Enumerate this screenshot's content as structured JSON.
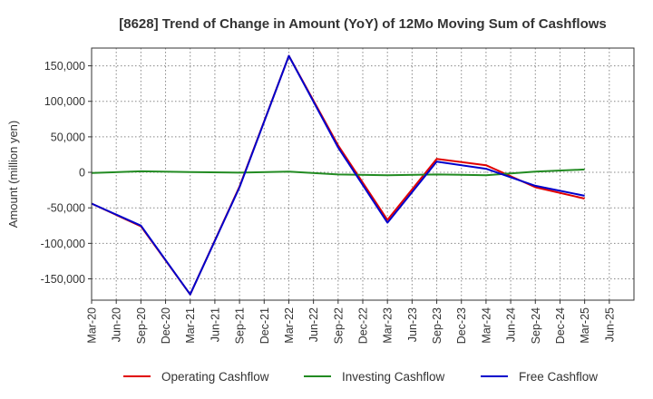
{
  "chart_data": {
    "type": "line",
    "title": "[8628]  Trend of Change in Amount (YoY) of 12Mo Moving Sum of Cashflows",
    "xlabel": "",
    "ylabel": "Amount (million yen)",
    "ylim": [
      -180000,
      175000
    ],
    "yticks": [
      150000,
      100000,
      50000,
      0,
      -50000,
      -100000,
      -150000
    ],
    "ytick_labels": [
      "150,000",
      "100,000",
      "50,000",
      "0",
      "-50,000",
      "-100,000",
      "-150,000"
    ],
    "categories": [
      "Mar-20",
      "Jun-20",
      "Sep-20",
      "Dec-20",
      "Mar-21",
      "Jun-21",
      "Sep-21",
      "Dec-21",
      "Mar-22",
      "Jun-22",
      "Sep-22",
      "Dec-22",
      "Mar-23",
      "Jun-23",
      "Sep-23",
      "Dec-23",
      "Mar-24",
      "Jun-24",
      "Sep-24",
      "Dec-24",
      "Mar-25",
      "Jun-25"
    ],
    "grid": true,
    "legend_position": "bottom",
    "series": [
      {
        "name": "Operating Cashflow",
        "color": "#e00000",
        "values": [
          -44000,
          null,
          -76000,
          null,
          -172000,
          null,
          -20000,
          null,
          164000,
          null,
          38000,
          null,
          -67000,
          null,
          19000,
          null,
          10000,
          null,
          -21000,
          null,
          -37000,
          null
        ]
      },
      {
        "name": "Investing Cashflow",
        "color": "#228b22",
        "values": [
          -1000,
          null,
          1500,
          null,
          500,
          null,
          -500,
          null,
          1000,
          null,
          -3000,
          null,
          -4000,
          null,
          -3000,
          null,
          -4000,
          null,
          1000,
          null,
          4000,
          null
        ]
      },
      {
        "name": "Free Cashflow",
        "color": "#0000cc",
        "values": [
          -44000,
          null,
          -75000,
          null,
          -172000,
          null,
          -21000,
          null,
          164000,
          null,
          35000,
          null,
          -71000,
          null,
          15000,
          null,
          5000,
          null,
          -19000,
          null,
          -33000,
          null
        ]
      }
    ]
  }
}
